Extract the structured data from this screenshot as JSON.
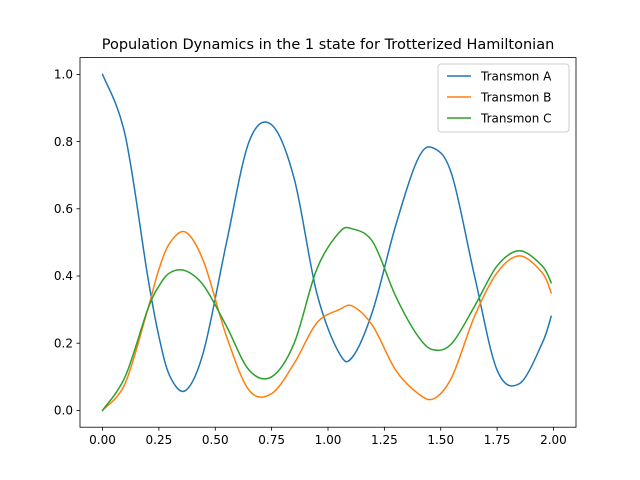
{
  "chart_data": {
    "type": "line",
    "title": "Population Dynamics in the 1 state for Trotterized Hamiltonian",
    "xlabel": "",
    "ylabel": "",
    "xlim": [
      -0.1,
      2.1
    ],
    "ylim": [
      -0.05,
      1.05
    ],
    "x_ticks": [
      0.0,
      0.25,
      0.5,
      0.75,
      1.0,
      1.25,
      1.5,
      1.75,
      2.0
    ],
    "x_tick_labels": [
      "0.00",
      "0.25",
      "0.50",
      "0.75",
      "1.00",
      "1.25",
      "1.50",
      "1.75",
      "2.00"
    ],
    "y_ticks": [
      0.0,
      0.2,
      0.4,
      0.6,
      0.8,
      1.0
    ],
    "y_tick_labels": [
      "0.0",
      "0.2",
      "0.4",
      "0.6",
      "0.8",
      "1.0"
    ],
    "grid": false,
    "legend_position": "top-right",
    "x": [
      0.0,
      0.1,
      0.2,
      0.25,
      0.3,
      0.37,
      0.45,
      0.55,
      0.65,
      0.75,
      0.85,
      0.95,
      1.05,
      1.11,
      1.2,
      1.3,
      1.4,
      1.47,
      1.55,
      1.65,
      1.75,
      1.85,
      1.95,
      1.99
    ],
    "series": [
      {
        "name": "Transmon A",
        "color": "#1f77b4",
        "values": [
          1.0,
          0.82,
          0.4,
          0.22,
          0.1,
          0.06,
          0.18,
          0.5,
          0.8,
          0.85,
          0.69,
          0.35,
          0.17,
          0.16,
          0.3,
          0.55,
          0.75,
          0.78,
          0.7,
          0.4,
          0.12,
          0.08,
          0.2,
          0.28
        ]
      },
      {
        "name": "Transmon B",
        "color": "#ff7f0e",
        "values": [
          0.0,
          0.08,
          0.3,
          0.42,
          0.5,
          0.53,
          0.44,
          0.22,
          0.06,
          0.05,
          0.14,
          0.26,
          0.3,
          0.31,
          0.25,
          0.12,
          0.05,
          0.035,
          0.1,
          0.28,
          0.41,
          0.46,
          0.41,
          0.35
        ]
      },
      {
        "name": "Transmon C",
        "color": "#2ca02c",
        "values": [
          0.0,
          0.1,
          0.3,
          0.37,
          0.41,
          0.415,
          0.37,
          0.25,
          0.12,
          0.1,
          0.2,
          0.42,
          0.53,
          0.54,
          0.5,
          0.34,
          0.22,
          0.18,
          0.2,
          0.31,
          0.43,
          0.475,
          0.43,
          0.38
        ]
      }
    ]
  }
}
